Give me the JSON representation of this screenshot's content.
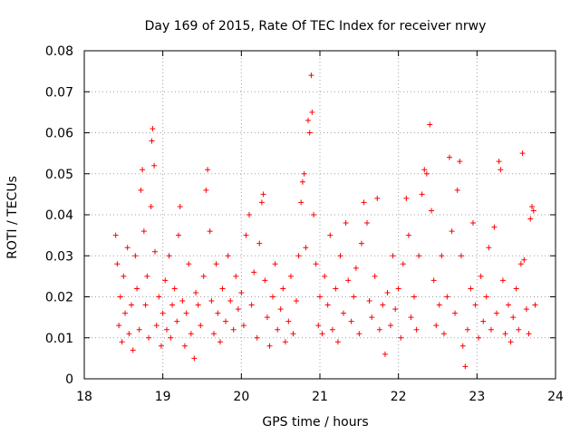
{
  "chart_data": {
    "type": "scatter",
    "marker": "+",
    "title": "Day 169 of 2015, Rate Of TEC Index for receiver nrwy",
    "xlabel": "GPS time / hours",
    "ylabel": "ROTI / TECUs",
    "xlim": [
      18,
      24
    ],
    "ylim": [
      0,
      0.08
    ],
    "x_ticks": [
      "18",
      "19",
      "20",
      "21",
      "22",
      "23",
      "24"
    ],
    "y_ticks": [
      "0",
      "0.01",
      "0.02",
      "0.03",
      "0.04",
      "0.05",
      "0.06",
      "0.07",
      "0.08"
    ],
    "grid": true,
    "series_color": "#ff0000",
    "x_range_of_data": [
      18.35,
      23.75
    ],
    "series": [
      {
        "name": "ROTI",
        "points": [
          [
            18.4,
            0.035
          ],
          [
            18.42,
            0.028
          ],
          [
            18.44,
            0.013
          ],
          [
            18.46,
            0.02
          ],
          [
            18.48,
            0.009
          ],
          [
            18.5,
            0.025
          ],
          [
            18.52,
            0.016
          ],
          [
            18.55,
            0.032
          ],
          [
            18.57,
            0.011
          ],
          [
            18.6,
            0.018
          ],
          [
            18.62,
            0.007
          ],
          [
            18.65,
            0.03
          ],
          [
            18.67,
            0.022
          ],
          [
            18.7,
            0.012
          ],
          [
            18.72,
            0.046
          ],
          [
            18.74,
            0.051
          ],
          [
            18.76,
            0.036
          ],
          [
            18.78,
            0.018
          ],
          [
            18.8,
            0.025
          ],
          [
            18.82,
            0.01
          ],
          [
            18.85,
            0.042
          ],
          [
            18.86,
            0.058
          ],
          [
            18.87,
            0.061
          ],
          [
            18.89,
            0.052
          ],
          [
            18.9,
            0.031
          ],
          [
            18.92,
            0.013
          ],
          [
            18.95,
            0.02
          ],
          [
            18.98,
            0.008
          ],
          [
            19.0,
            0.016
          ],
          [
            19.03,
            0.024
          ],
          [
            19.05,
            0.012
          ],
          [
            19.08,
            0.03
          ],
          [
            19.1,
            0.01
          ],
          [
            19.12,
            0.018
          ],
          [
            19.15,
            0.022
          ],
          [
            19.18,
            0.014
          ],
          [
            19.2,
            0.035
          ],
          [
            19.22,
            0.042
          ],
          [
            19.25,
            0.019
          ],
          [
            19.28,
            0.008
          ],
          [
            19.3,
            0.016
          ],
          [
            19.33,
            0.028
          ],
          [
            19.36,
            0.011
          ],
          [
            19.4,
            0.005
          ],
          [
            19.42,
            0.021
          ],
          [
            19.45,
            0.018
          ],
          [
            19.48,
            0.013
          ],
          [
            19.52,
            0.025
          ],
          [
            19.55,
            0.046
          ],
          [
            19.57,
            0.051
          ],
          [
            19.6,
            0.036
          ],
          [
            19.62,
            0.019
          ],
          [
            19.65,
            0.011
          ],
          [
            19.68,
            0.028
          ],
          [
            19.7,
            0.016
          ],
          [
            19.73,
            0.009
          ],
          [
            19.76,
            0.022
          ],
          [
            19.8,
            0.014
          ],
          [
            19.83,
            0.03
          ],
          [
            19.86,
            0.019
          ],
          [
            19.9,
            0.012
          ],
          [
            19.93,
            0.025
          ],
          [
            19.96,
            0.017
          ],
          [
            20.0,
            0.021
          ],
          [
            20.03,
            0.013
          ],
          [
            20.06,
            0.035
          ],
          [
            20.1,
            0.04
          ],
          [
            20.13,
            0.018
          ],
          [
            20.16,
            0.026
          ],
          [
            20.2,
            0.01
          ],
          [
            20.23,
            0.033
          ],
          [
            20.26,
            0.043
          ],
          [
            20.28,
            0.045
          ],
          [
            20.3,
            0.024
          ],
          [
            20.33,
            0.015
          ],
          [
            20.36,
            0.008
          ],
          [
            20.4,
            0.02
          ],
          [
            20.43,
            0.028
          ],
          [
            20.46,
            0.012
          ],
          [
            20.5,
            0.017
          ],
          [
            20.53,
            0.022
          ],
          [
            20.56,
            0.009
          ],
          [
            20.6,
            0.014
          ],
          [
            20.63,
            0.025
          ],
          [
            20.66,
            0.011
          ],
          [
            20.7,
            0.019
          ],
          [
            20.73,
            0.03
          ],
          [
            20.76,
            0.043
          ],
          [
            20.78,
            0.048
          ],
          [
            20.8,
            0.05
          ],
          [
            20.82,
            0.032
          ],
          [
            20.85,
            0.063
          ],
          [
            20.87,
            0.06
          ],
          [
            20.89,
            0.074
          ],
          [
            20.9,
            0.065
          ],
          [
            20.92,
            0.04
          ],
          [
            20.95,
            0.028
          ],
          [
            20.98,
            0.013
          ],
          [
            21.0,
            0.02
          ],
          [
            21.03,
            0.011
          ],
          [
            21.06,
            0.025
          ],
          [
            21.1,
            0.018
          ],
          [
            21.13,
            0.035
          ],
          [
            21.16,
            0.012
          ],
          [
            21.2,
            0.022
          ],
          [
            21.23,
            0.009
          ],
          [
            21.26,
            0.03
          ],
          [
            21.3,
            0.016
          ],
          [
            21.33,
            0.038
          ],
          [
            21.36,
            0.024
          ],
          [
            21.4,
            0.014
          ],
          [
            21.43,
            0.02
          ],
          [
            21.46,
            0.027
          ],
          [
            21.5,
            0.011
          ],
          [
            21.53,
            0.033
          ],
          [
            21.56,
            0.043
          ],
          [
            21.6,
            0.038
          ],
          [
            21.63,
            0.019
          ],
          [
            21.66,
            0.015
          ],
          [
            21.7,
            0.025
          ],
          [
            21.73,
            0.044
          ],
          [
            21.76,
            0.012
          ],
          [
            21.8,
            0.018
          ],
          [
            21.83,
            0.006
          ],
          [
            21.86,
            0.021
          ],
          [
            21.9,
            0.013
          ],
          [
            21.93,
            0.03
          ],
          [
            21.96,
            0.017
          ],
          [
            22.0,
            0.022
          ],
          [
            22.03,
            0.01
          ],
          [
            22.06,
            0.028
          ],
          [
            22.1,
            0.044
          ],
          [
            22.13,
            0.035
          ],
          [
            22.16,
            0.015
          ],
          [
            22.2,
            0.02
          ],
          [
            22.23,
            0.012
          ],
          [
            22.26,
            0.03
          ],
          [
            22.3,
            0.045
          ],
          [
            22.33,
            0.051
          ],
          [
            22.36,
            0.05
          ],
          [
            22.4,
            0.062
          ],
          [
            22.42,
            0.041
          ],
          [
            22.45,
            0.024
          ],
          [
            22.48,
            0.013
          ],
          [
            22.52,
            0.018
          ],
          [
            22.55,
            0.03
          ],
          [
            22.58,
            0.011
          ],
          [
            22.62,
            0.02
          ],
          [
            22.65,
            0.054
          ],
          [
            22.68,
            0.036
          ],
          [
            22.72,
            0.016
          ],
          [
            22.75,
            0.046
          ],
          [
            22.78,
            0.053
          ],
          [
            22.8,
            0.03
          ],
          [
            22.82,
            0.008
          ],
          [
            22.85,
            0.003
          ],
          [
            22.88,
            0.012
          ],
          [
            22.92,
            0.022
          ],
          [
            22.95,
            0.038
          ],
          [
            22.98,
            0.018
          ],
          [
            23.02,
            0.01
          ],
          [
            23.05,
            0.025
          ],
          [
            23.08,
            0.014
          ],
          [
            23.12,
            0.02
          ],
          [
            23.15,
            0.032
          ],
          [
            23.18,
            0.012
          ],
          [
            23.22,
            0.037
          ],
          [
            23.25,
            0.016
          ],
          [
            23.28,
            0.053
          ],
          [
            23.3,
            0.051
          ],
          [
            23.33,
            0.024
          ],
          [
            23.36,
            0.011
          ],
          [
            23.4,
            0.018
          ],
          [
            23.43,
            0.009
          ],
          [
            23.46,
            0.015
          ],
          [
            23.5,
            0.022
          ],
          [
            23.53,
            0.012
          ],
          [
            23.56,
            0.028
          ],
          [
            23.58,
            0.055
          ],
          [
            23.6,
            0.029
          ],
          [
            23.63,
            0.017
          ],
          [
            23.66,
            0.011
          ],
          [
            23.68,
            0.039
          ],
          [
            23.7,
            0.042
          ],
          [
            23.72,
            0.041
          ],
          [
            23.74,
            0.018
          ]
        ]
      }
    ]
  }
}
